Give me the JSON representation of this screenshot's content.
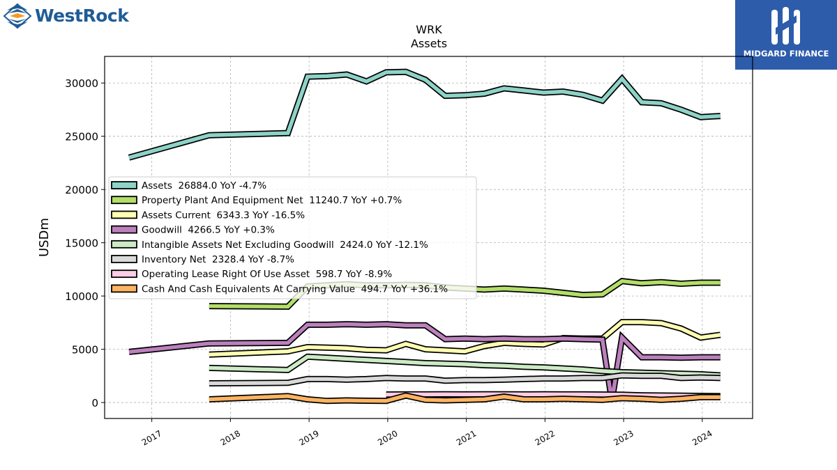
{
  "brand": {
    "left_logo_text": "WestRock",
    "right_logo_text": "MIDGARD FINANCE",
    "left_logo_icon": "westrock-chevron-icon",
    "right_logo_icon": "midgard-pillars-icon"
  },
  "chart_data": {
    "type": "line",
    "title": "WRK",
    "subtitle": "Assets",
    "ylabel": "USDm",
    "xlabel": "",
    "ylim": [
      -1500,
      32500
    ],
    "xlim": [
      2016.4,
      2024.64
    ],
    "yticks": [
      0,
      5000,
      10000,
      15000,
      20000,
      25000,
      30000
    ],
    "xticks": [
      {
        "value": 2017,
        "label": "2017"
      },
      {
        "value": 2018,
        "label": "2018"
      },
      {
        "value": 2019,
        "label": "2019"
      },
      {
        "value": 2020,
        "label": "2020"
      },
      {
        "value": 2021,
        "label": "2021"
      },
      {
        "value": 2022,
        "label": "2022"
      },
      {
        "value": 2023,
        "label": "2023"
      },
      {
        "value": 2024,
        "label": "2024"
      }
    ],
    "grid": true,
    "legend_position": "center-left",
    "series": [
      {
        "name": "Assets",
        "legend": "Assets  26884.0 YoY -4.7%",
        "color": "#8dd3c7",
        "x": [
          2016.71,
          2017.73,
          2018.73,
          2018.98,
          2019.23,
          2019.48,
          2019.73,
          2019.98,
          2020.23,
          2020.48,
          2020.73,
          2020.98,
          2021.23,
          2021.48,
          2021.73,
          2021.98,
          2022.23,
          2022.48,
          2022.73,
          2022.98,
          2023.23,
          2023.48,
          2023.73,
          2023.98,
          2024.23
        ],
        "y": [
          23000,
          25100,
          25300,
          30600,
          30650,
          30800,
          30150,
          31000,
          31050,
          30300,
          28800,
          28850,
          29000,
          29500,
          29300,
          29100,
          29200,
          28900,
          28350,
          30400,
          28200,
          28100,
          27500,
          26800,
          26900
        ]
      },
      {
        "name": "Property Plant And Equipment Net",
        "legend": "Property Plant And Equipment Net  11240.7 YoY +0.7%",
        "color": "#b3de69",
        "x": [
          2017.73,
          2018.73,
          2018.98,
          2019.23,
          2019.48,
          2019.73,
          2019.98,
          2020.23,
          2020.48,
          2020.73,
          2020.98,
          2021.23,
          2021.48,
          2021.73,
          2021.98,
          2022.23,
          2022.48,
          2022.73,
          2022.98,
          2023.23,
          2023.48,
          2023.73,
          2023.98,
          2024.23
        ],
        "y": [
          9050,
          9000,
          10900,
          11000,
          11100,
          11000,
          11000,
          11050,
          11000,
          10800,
          10700,
          10600,
          10700,
          10600,
          10500,
          10300,
          10100,
          10150,
          11400,
          11200,
          11300,
          11150,
          11250,
          11250
        ]
      },
      {
        "name": "Assets Current",
        "legend": "Assets Current  6343.3 YoY -16.5%",
        "color": "#ffffb3",
        "x": [
          2017.73,
          2018.73,
          2018.98,
          2019.23,
          2019.48,
          2019.73,
          2019.98,
          2020.23,
          2020.48,
          2020.73,
          2020.98,
          2021.23,
          2021.48,
          2021.73,
          2021.98,
          2022.23,
          2022.48,
          2022.73,
          2022.98,
          2023.23,
          2023.48,
          2023.73,
          2023.98,
          2024.23
        ],
        "y": [
          4500,
          4800,
          5200,
          5150,
          5100,
          4950,
          4900,
          5500,
          5000,
          4900,
          4800,
          5300,
          5600,
          5500,
          5450,
          6050,
          6000,
          6000,
          7550,
          7550,
          7450,
          6950,
          6100,
          6350
        ]
      },
      {
        "name": "Goodwill",
        "legend": "Goodwill  4266.5 YoY +0.3%",
        "color": "#bc80bd",
        "x": [
          2016.71,
          2017.73,
          2018.73,
          2018.98,
          2019.23,
          2019.48,
          2019.73,
          2019.98,
          2020.23,
          2020.48,
          2020.73,
          2020.98,
          2021.23,
          2021.48,
          2021.73,
          2021.98,
          2022.23,
          2022.48,
          2022.73,
          2022.85,
          2022.98,
          2023.23,
          2023.48,
          2023.73,
          2023.98,
          2024.23
        ],
        "y": [
          4750,
          5550,
          5600,
          7300,
          7300,
          7350,
          7300,
          7350,
          7250,
          7250,
          5950,
          6000,
          5950,
          6000,
          5950,
          5950,
          6000,
          5950,
          5900,
          150,
          6100,
          4250,
          4250,
          4200,
          4250,
          4250
        ]
      },
      {
        "name": "Intangible Assets Net Excluding Goodwill",
        "legend": "Intangible Assets Net Excluding Goodwill  2424.0 YoY -12.1%",
        "color": "#ccebc5",
        "x": [
          2017.73,
          2018.73,
          2018.98,
          2019.23,
          2019.48,
          2019.73,
          2019.98,
          2020.23,
          2020.48,
          2020.73,
          2020.98,
          2021.23,
          2021.48,
          2021.73,
          2021.98,
          2022.23,
          2022.48,
          2022.73,
          2022.98,
          2023.23,
          2023.48,
          2023.73,
          2023.98,
          2024.23
        ],
        "y": [
          3250,
          3050,
          4300,
          4200,
          4100,
          4000,
          3900,
          3800,
          3700,
          3650,
          3600,
          3500,
          3450,
          3350,
          3300,
          3200,
          3100,
          2950,
          2850,
          2800,
          2750,
          2700,
          2650,
          2550
        ]
      },
      {
        "name": "Inventory Net",
        "legend": "Inventory Net  2328.4 YoY -8.7%",
        "color": "#d9d9d9",
        "x": [
          2017.73,
          2018.73,
          2018.98,
          2019.23,
          2019.48,
          2019.73,
          2019.98,
          2020.23,
          2020.48,
          2020.73,
          2020.98,
          2021.23,
          2021.48,
          2021.73,
          2021.98,
          2022.23,
          2022.48,
          2022.73,
          2022.98,
          2023.23,
          2023.48,
          2023.73,
          2023.98,
          2024.23
        ],
        "y": [
          1800,
          1850,
          2200,
          2200,
          2150,
          2200,
          2300,
          2250,
          2250,
          2050,
          2100,
          2100,
          2150,
          2200,
          2250,
          2250,
          2300,
          2300,
          2550,
          2500,
          2500,
          2300,
          2350,
          2300
        ]
      },
      {
        "name": "Operating Lease Right Of Use Asset",
        "legend": "Operating Lease Right Of Use Asset  598.7 YoY -8.9%",
        "color": "#fccde5",
        "x": [
          2019.98,
          2020.23,
          2020.48,
          2020.73,
          2020.98,
          2021.23,
          2021.48,
          2021.73,
          2021.98,
          2022.23,
          2022.48,
          2022.73,
          2022.98,
          2023.23,
          2023.48,
          2023.73,
          2023.98,
          2024.23
        ],
        "y": [
          750,
          760,
          760,
          770,
          760,
          770,
          770,
          760,
          770,
          760,
          760,
          750,
          730,
          680,
          660,
          640,
          620,
          600
        ]
      },
      {
        "name": "Cash And Cash Equivalents At Carrying Value",
        "legend": "Cash And Cash Equivalents At Carrying Value  494.7 YoY +36.1%",
        "color": "#fdb462",
        "x": [
          2017.73,
          2018.73,
          2018.98,
          2019.23,
          2019.48,
          2019.73,
          2019.98,
          2020.23,
          2020.48,
          2020.73,
          2020.98,
          2021.23,
          2021.48,
          2021.73,
          2021.98,
          2022.23,
          2022.48,
          2022.73,
          2022.98,
          2023.23,
          2023.48,
          2023.73,
          2023.98,
          2024.23
        ],
        "y": [
          300,
          600,
          300,
          150,
          200,
          170,
          150,
          650,
          250,
          200,
          250,
          300,
          550,
          300,
          300,
          350,
          300,
          250,
          400,
          350,
          250,
          350,
          500,
          500
        ]
      }
    ]
  }
}
